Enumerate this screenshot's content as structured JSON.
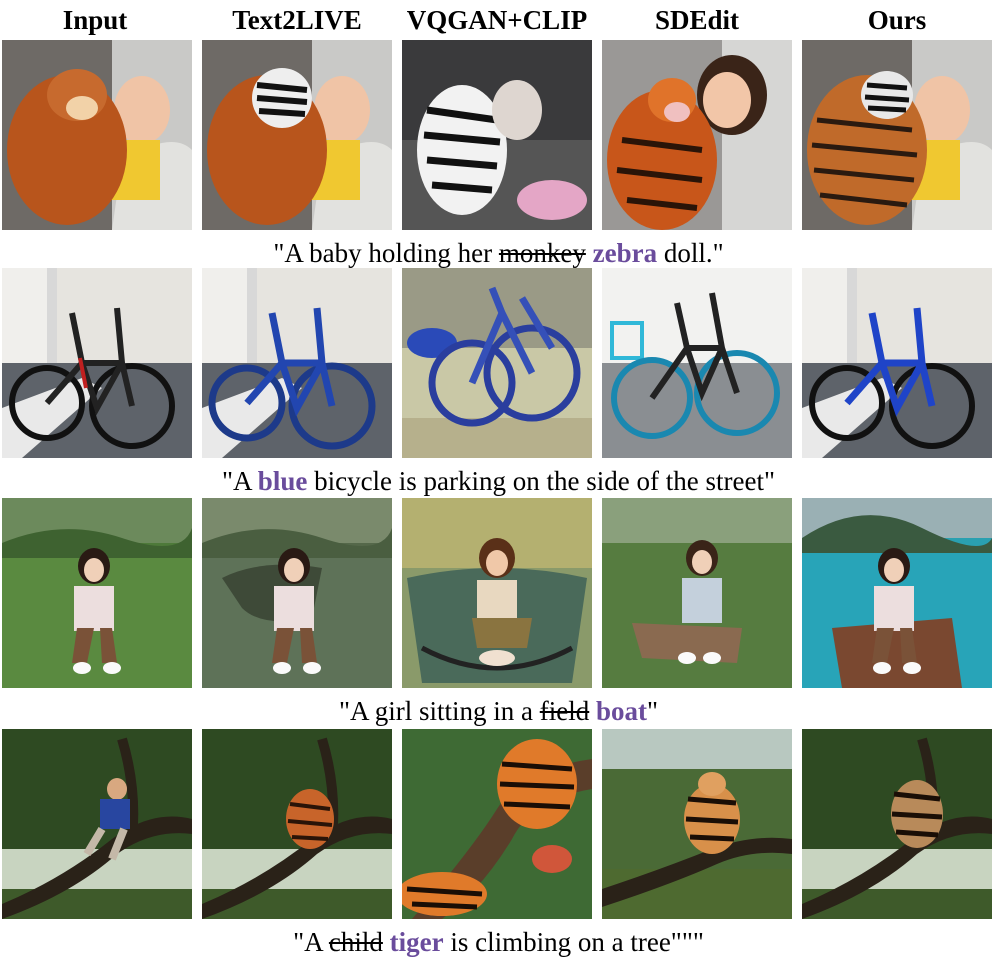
{
  "columns": [
    "Input",
    "Text2LIVE",
    "VQGAN+CLIP",
    "SDEdit",
    "Ours"
  ],
  "captions": [
    {
      "prefix": "\"A baby holding her ",
      "removed": "monkey",
      "added": "zebra",
      "suffix": " doll.\""
    },
    {
      "prefix": "\"A ",
      "removed": "",
      "added": "blue",
      "suffix": "  bicycle is parking on the side of the street\""
    },
    {
      "prefix": "\"A girl sitting in a ",
      "removed": "field",
      "added": "boat",
      "suffix": "\""
    },
    {
      "prefix": "\"A ",
      "removed": "child",
      "added": "tiger",
      "suffix": " is climbing on a tree\"\"\""
    }
  ],
  "colors": {
    "accent": "#6a4c9c"
  }
}
